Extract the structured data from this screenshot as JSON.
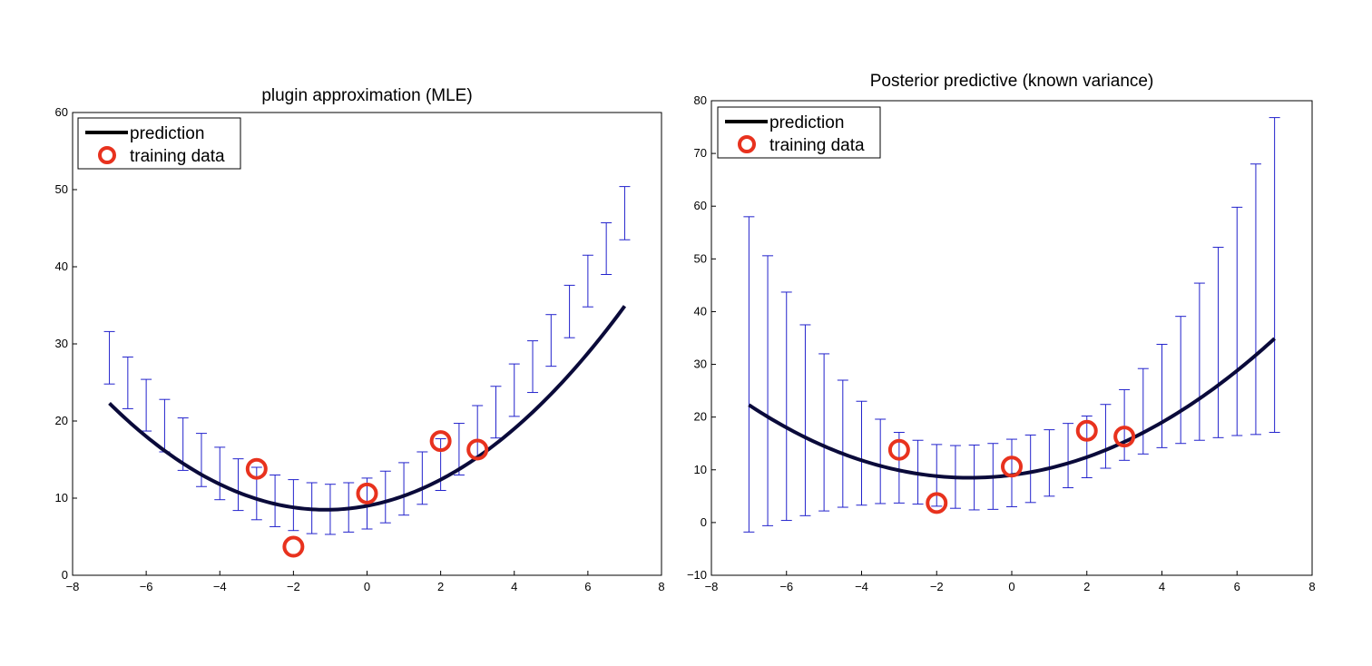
{
  "chart_data": [
    {
      "type": "line",
      "title": "plugin approximation (MLE)",
      "xlim": [
        -8,
        8
      ],
      "ylim": [
        0,
        60
      ],
      "xticks": [
        -8,
        -6,
        -4,
        -2,
        0,
        2,
        4,
        6,
        8
      ],
      "yticks": [
        0,
        10,
        20,
        30,
        40,
        50,
        60
      ],
      "xtick_labels": [
        "−8",
        "−6",
        "−4",
        "−2",
        "0",
        "2",
        "4",
        "6",
        "8"
      ],
      "ytick_labels": [
        "0",
        "10",
        "20",
        "30",
        "40",
        "50",
        "60"
      ],
      "legend": {
        "placement": "top-left",
        "prediction_label": "prediction",
        "training_label": "training data"
      },
      "prediction": {
        "name": "prediction",
        "color": "#0a0a3a",
        "coef": [
          0.4,
          0.9,
          9.0
        ]
      },
      "training_data": {
        "name": "training data",
        "color": "#e8321e",
        "x": [
          -3,
          -2,
          0,
          2,
          3
        ],
        "y": [
          13.8,
          3.7,
          10.6,
          17.4,
          16.3
        ]
      },
      "error_bars": {
        "color": "#2222cc",
        "x": [
          -7,
          -6.5,
          -6,
          -5.5,
          -5,
          -4.5,
          -4,
          -3.5,
          -3,
          -2.5,
          -2,
          -1.5,
          -1,
          -0.5,
          0,
          0.5,
          1,
          1.5,
          2,
          2.5,
          3,
          3.5,
          4,
          4.5,
          5,
          5.5,
          6,
          6.5,
          7
        ],
        "lower": [
          24.8,
          21.6,
          18.7,
          16.0,
          13.6,
          11.5,
          9.8,
          8.4,
          7.2,
          6.3,
          5.8,
          5.4,
          5.3,
          5.6,
          6.0,
          6.8,
          7.8,
          9.2,
          11.0,
          13.0,
          15.4,
          17.8,
          20.6,
          23.7,
          27.1,
          30.8,
          34.8,
          39.0,
          43.5
        ],
        "upper": [
          31.6,
          28.3,
          25.4,
          22.8,
          20.4,
          18.4,
          16.6,
          15.1,
          14.0,
          13.0,
          12.4,
          12.0,
          11.8,
          12.0,
          12.6,
          13.5,
          14.6,
          16.0,
          17.7,
          19.7,
          22.0,
          24.5,
          27.4,
          30.4,
          33.8,
          37.6,
          41.5,
          45.7,
          50.4
        ]
      }
    },
    {
      "type": "line",
      "title": "Posterior predictive (known variance)",
      "xlim": [
        -8,
        8
      ],
      "ylim": [
        -10,
        80
      ],
      "xticks": [
        -8,
        -6,
        -4,
        -2,
        0,
        2,
        4,
        6,
        8
      ],
      "yticks": [
        -10,
        0,
        10,
        20,
        30,
        40,
        50,
        60,
        70,
        80
      ],
      "xtick_labels": [
        "−8",
        "−6",
        "−4",
        "−2",
        "0",
        "2",
        "4",
        "6",
        "8"
      ],
      "ytick_labels": [
        "−10",
        "0",
        "10",
        "20",
        "30",
        "40",
        "50",
        "60",
        "70",
        "80"
      ],
      "legend": {
        "placement": "top-left",
        "prediction_label": "prediction",
        "training_label": "training data"
      },
      "prediction": {
        "name": "prediction",
        "color": "#0a0a3a",
        "coef": [
          0.4,
          0.9,
          9.0
        ]
      },
      "training_data": {
        "name": "training data",
        "color": "#e8321e",
        "x": [
          -3,
          -2,
          0,
          2,
          3
        ],
        "y": [
          13.8,
          3.7,
          10.6,
          17.4,
          16.3
        ]
      },
      "error_bars": {
        "color": "#2222cc",
        "x": [
          -7,
          -6.5,
          -6,
          -5.5,
          -5,
          -4.5,
          -4,
          -3.5,
          -3,
          -2.5,
          -2,
          -1.5,
          -1,
          -0.5,
          0,
          0.5,
          1,
          1.5,
          2,
          2.5,
          3,
          3.5,
          4,
          4.5,
          5,
          5.5,
          6,
          6.5,
          7
        ],
        "lower": [
          -1.8,
          -0.6,
          0.4,
          1.3,
          2.2,
          2.9,
          3.3,
          3.6,
          3.7,
          3.5,
          3.1,
          2.7,
          2.4,
          2.5,
          3.0,
          3.8,
          5.0,
          6.6,
          8.5,
          10.3,
          11.8,
          13.0,
          14.2,
          15.0,
          15.6,
          16.1,
          16.5,
          16.7,
          17.1
        ],
        "upper": [
          58.0,
          50.6,
          43.7,
          37.5,
          32.0,
          27.0,
          23.0,
          19.6,
          17.1,
          15.6,
          14.8,
          14.6,
          14.7,
          15.0,
          15.8,
          16.6,
          17.6,
          18.8,
          20.2,
          22.4,
          25.2,
          29.2,
          33.8,
          39.1,
          45.4,
          52.2,
          59.8,
          68.0,
          76.8
        ]
      }
    }
  ]
}
